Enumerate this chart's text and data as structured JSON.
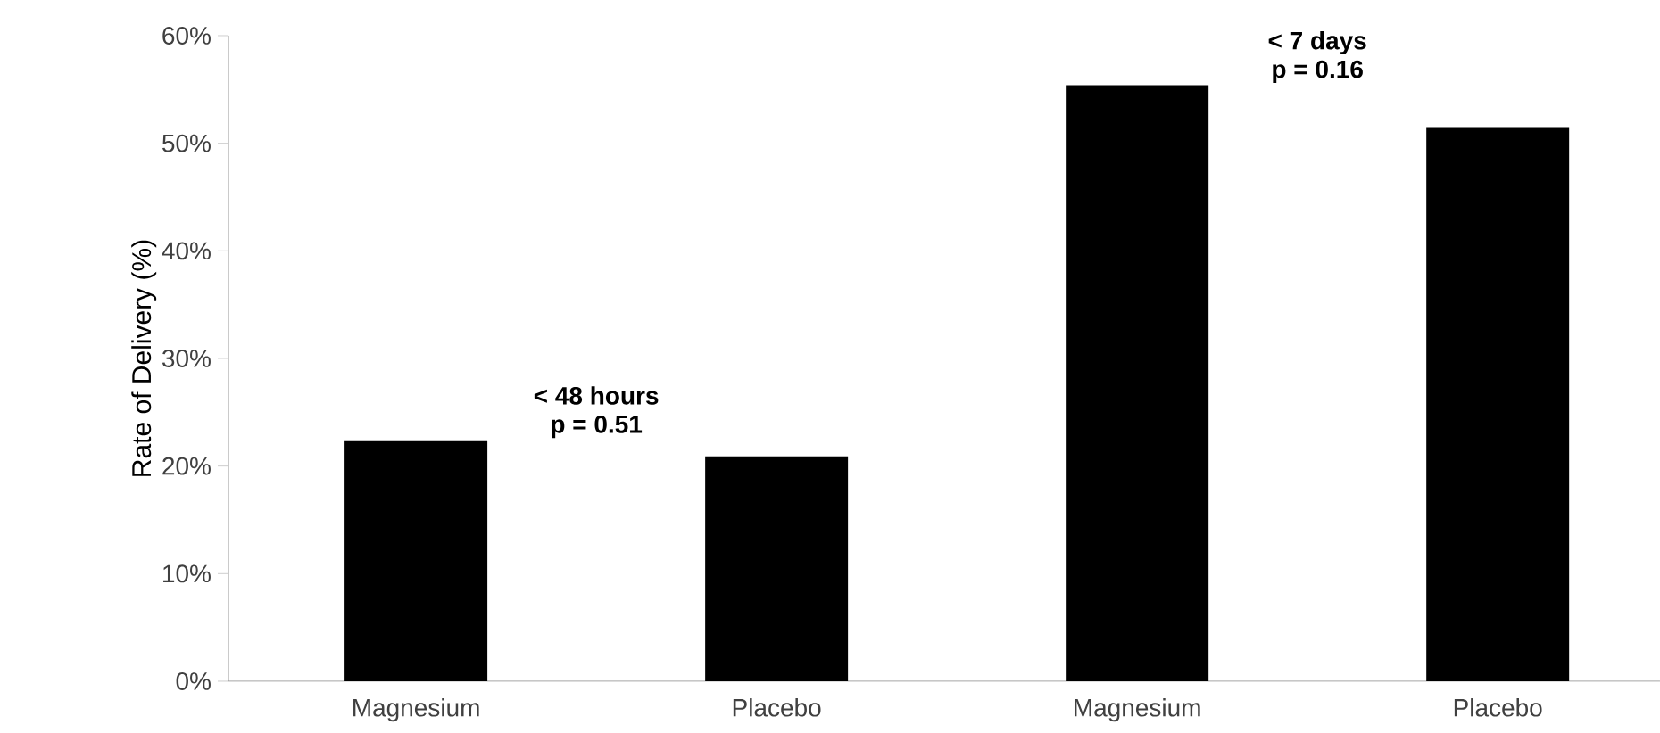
{
  "chart_data": {
    "type": "bar",
    "ylabel": "Rate of Delivery (%)",
    "categories": [
      "Magnesium",
      "Placebo",
      "Magnesium",
      "Placebo"
    ],
    "values": [
      22.4,
      20.9,
      55.4,
      51.5
    ],
    "color": "#000000",
    "ylim": [
      0,
      60
    ],
    "yticks": [
      {
        "value": 0,
        "label": "0%"
      },
      {
        "value": 10,
        "label": "10%"
      },
      {
        "value": 20,
        "label": "20%"
      },
      {
        "value": 30,
        "label": "30%"
      },
      {
        "value": 40,
        "label": "40%"
      },
      {
        "value": 50,
        "label": "50%"
      },
      {
        "value": 60,
        "label": "60%"
      }
    ],
    "annotations": [
      "< 48 hours",
      "p = 0.51",
      "< 7 days",
      "p = 0.16"
    ],
    "grid": false
  }
}
